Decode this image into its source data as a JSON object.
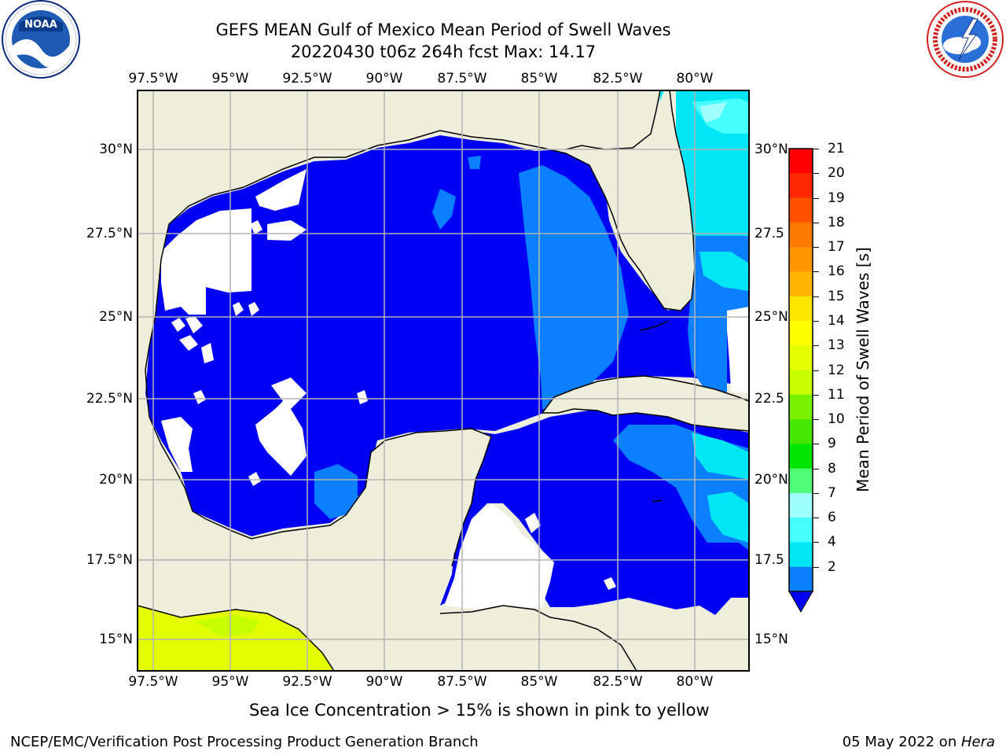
{
  "title": {
    "line1": "GEFS MEAN Gulf of Mexico Mean Period of Swell Waves",
    "line2": "20220430 t06z 264h fcst   Max: 14.17"
  },
  "logos": {
    "noara_text": "NOAA",
    "noaa_ring": "NATIONAL OCEANIC AND ATMOSPHERIC ADMINISTRATION · U.S. DEPARTMENT OF COMMERCE",
    "nws_ring": "NATIONAL WEATHER SERVICE"
  },
  "map": {
    "lon_labels": [
      "97.5°W",
      "95°W",
      "92.5°W",
      "90°W",
      "87.5°W",
      "85°W",
      "82.5°W",
      "80°W"
    ],
    "lat_labels_left": [
      "30°N",
      "27.5°N",
      "25°N",
      "22.5°N",
      "20°N",
      "17.5°N",
      "15°N"
    ],
    "lat_labels_right": [
      "30°N",
      "27.5",
      "25°N",
      "22.5",
      "20°N",
      "17.5",
      "15°N"
    ],
    "colors": {
      "land": "#eeeedc",
      "ocean_low": "#0000f5",
      "ocean_2_4": "#0a80ff",
      "ocean_4_6": "#00e6f5",
      "ocean_6_8": "#46ffff",
      "ocean_8_9": "#a0ffff",
      "yellow_zone": "#e2fe00",
      "grid": "#b4b4b4"
    }
  },
  "colorbar": {
    "label": "Mean Period of Swell Waves [s]",
    "ticks": [
      "21",
      "20",
      "19",
      "18",
      "17",
      "16",
      "15",
      "14",
      "13",
      "12",
      "11",
      "10",
      "9",
      "8",
      "7",
      "6",
      "4",
      "2"
    ],
    "colors_top_to_bottom": [
      "#ff0000",
      "#ff2800",
      "#ff5000",
      "#ff7800",
      "#ff9600",
      "#ffb400",
      "#ffe600",
      "#ffff00",
      "#e6ff00",
      "#c8ff00",
      "#78f000",
      "#46e600",
      "#00e600",
      "#50ff78",
      "#a0ffff",
      "#46ffff",
      "#00e6f5",
      "#0a80ff"
    ],
    "extend_color": "#0000f5"
  },
  "note": "Sea Ice Concentration > 15% is shown in pink to yellow",
  "footer": {
    "left": "NCEP/EMC/Verification Post Processing Product Generation Branch",
    "date": "05 May 2022 on ",
    "host": "Hera"
  }
}
